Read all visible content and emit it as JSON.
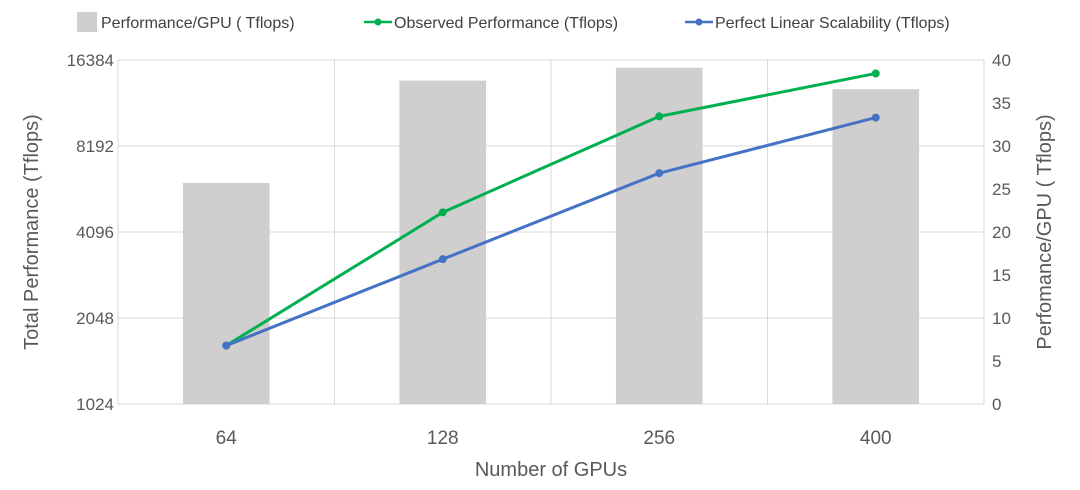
{
  "chart_data": {
    "type": "bar",
    "categories": [
      "64",
      "128",
      "256",
      "400"
    ],
    "xlabel": "Number of GPUs",
    "ylabel": "Total Performance (Tflops)",
    "ylabel_right": "Perfomance/GPU ( Tflops)",
    "y_left": {
      "scale": "log2",
      "range": [
        1024,
        16384
      ],
      "ticks": [
        1024,
        2048,
        4096,
        8192,
        16384
      ],
      "tick_labels": [
        "1024",
        "2048",
        "4096",
        "8192",
        "16384"
      ]
    },
    "y_right": {
      "scale": "linear",
      "range": [
        0,
        40
      ],
      "ticks": [
        0,
        5,
        10,
        15,
        20,
        25,
        30,
        35,
        40
      ],
      "tick_labels": [
        "0",
        "5",
        "10",
        "15",
        "20",
        "25",
        "30",
        "35",
        "40"
      ]
    },
    "grid": true,
    "legend_position": "top",
    "series": [
      {
        "name": "Performance/GPU ( Tflops)",
        "type": "bar",
        "axis": "right",
        "color": "#d0cece",
        "values": [
          25.7,
          37.6,
          39.1,
          36.6
        ]
      },
      {
        "name": "Observed Performance (Tflops)",
        "type": "line",
        "axis": "left",
        "color": "#00b050",
        "values": [
          1640,
          4800,
          10400,
          14700
        ]
      },
      {
        "name": "Perfect Linear Scalability (Tflops)",
        "type": "line",
        "axis": "left",
        "color": "#4472c4",
        "values": [
          1640,
          3290,
          6580,
          10300
        ]
      }
    ]
  }
}
